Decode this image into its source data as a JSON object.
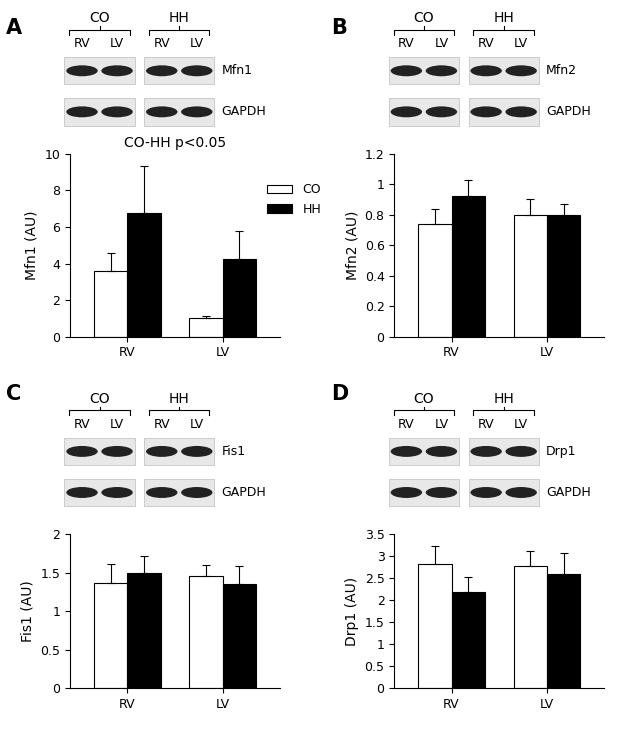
{
  "chart_data": [
    {
      "type": "bar",
      "title": "A",
      "y_label": "Mfn1 (AU)",
      "annotations": [
        "CO-HH p<0.05"
      ],
      "categories": [
        "RV",
        "LV"
      ],
      "series": [
        {
          "name": "CO",
          "color": "#ffffff",
          "values": [
            3.6,
            1.0
          ],
          "errors": [
            1.0,
            0.15
          ]
        },
        {
          "name": "HH",
          "color": "#000000",
          "values": [
            6.75,
            4.25
          ],
          "errors": [
            2.6,
            1.55
          ]
        }
      ],
      "ylim": [
        0,
        10
      ],
      "yticks": [
        0,
        2,
        4,
        6,
        8,
        10
      ],
      "legend": "center right",
      "blot": {
        "groups": [
          "CO",
          "HH"
        ],
        "lanes": [
          "RV",
          "LV",
          "RV",
          "LV"
        ],
        "proteins": [
          "Mfn1",
          "GAPDH"
        ]
      }
    },
    {
      "type": "bar",
      "title": "B",
      "y_label": "Mfn2 (AU)",
      "categories": [
        "RV",
        "LV"
      ],
      "series": [
        {
          "name": "CO",
          "color": "#ffffff",
          "values": [
            0.74,
            0.8
          ],
          "errors": [
            0.1,
            0.1
          ]
        },
        {
          "name": "HH",
          "color": "#000000",
          "values": [
            0.92,
            0.8
          ],
          "errors": [
            0.11,
            0.07
          ]
        }
      ],
      "ylim": [
        0,
        1.2
      ],
      "yticks": [
        0,
        0.2,
        0.4,
        0.6,
        0.8,
        1,
        1.2
      ],
      "blot": {
        "groups": [
          "CO",
          "HH"
        ],
        "lanes": [
          "RV",
          "LV",
          "RV",
          "LV"
        ],
        "proteins": [
          "Mfn2",
          "GAPDH"
        ]
      }
    },
    {
      "type": "bar",
      "title": "C",
      "y_label": "Fis1 (AU)",
      "categories": [
        "RV",
        "LV"
      ],
      "series": [
        {
          "name": "CO",
          "color": "#ffffff",
          "values": [
            1.37,
            1.46
          ],
          "errors": [
            0.25,
            0.14
          ]
        },
        {
          "name": "HH",
          "color": "#000000",
          "values": [
            1.5,
            1.36
          ],
          "errors": [
            0.22,
            0.23
          ]
        }
      ],
      "ylim": [
        0,
        2
      ],
      "yticks": [
        0,
        0.5,
        1,
        1.5,
        2
      ],
      "blot": {
        "groups": [
          "CO",
          "HH"
        ],
        "lanes": [
          "RV",
          "LV",
          "RV",
          "LV"
        ],
        "proteins": [
          "Fis1",
          "GAPDH"
        ]
      }
    },
    {
      "type": "bar",
      "title": "D",
      "y_label": "Drp1 (AU)",
      "categories": [
        "RV",
        "LV"
      ],
      "series": [
        {
          "name": "CO",
          "color": "#ffffff",
          "values": [
            2.83,
            2.78
          ],
          "errors": [
            0.4,
            0.35
          ]
        },
        {
          "name": "HH",
          "color": "#000000",
          "values": [
            2.18,
            2.6
          ],
          "errors": [
            0.35,
            0.48
          ]
        }
      ],
      "ylim": [
        0,
        3.5
      ],
      "yticks": [
        0,
        0.5,
        1,
        1.5,
        2,
        2.5,
        3,
        3.5
      ],
      "blot": {
        "groups": [
          "CO",
          "HH"
        ],
        "lanes": [
          "RV",
          "LV",
          "RV",
          "LV"
        ],
        "proteins": [
          "Drp1",
          "GAPDH"
        ]
      }
    }
  ]
}
